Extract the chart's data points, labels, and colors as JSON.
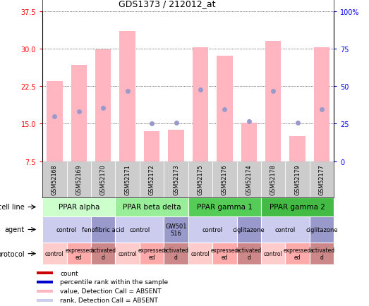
{
  "title": "GDS1373 / 212012_at",
  "samples": [
    "GSM52168",
    "GSM52169",
    "GSM52170",
    "GSM52171",
    "GSM52172",
    "GSM52173",
    "GSM52175",
    "GSM52176",
    "GSM52174",
    "GSM52178",
    "GSM52179",
    "GSM52177"
  ],
  "bar_values": [
    23.5,
    26.8,
    29.8,
    33.5,
    13.5,
    13.8,
    30.2,
    28.5,
    15.2,
    31.5,
    12.5,
    30.2
  ],
  "dot_values": [
    16.5,
    17.5,
    18.2,
    21.5,
    15.0,
    15.2,
    21.8,
    17.8,
    15.5,
    21.5,
    15.2,
    17.8
  ],
  "ymin": 7.5,
  "ymax": 37.5,
  "y2min": 0,
  "y2max": 100,
  "yticks": [
    7.5,
    15.0,
    22.5,
    30.0,
    37.5
  ],
  "y2ticks": [
    0,
    25,
    50,
    75,
    100
  ],
  "bar_color": "#ffb6c1",
  "dot_color": "#9999cc",
  "cell_line_groups": [
    {
      "label": "PPAR alpha",
      "start": 0,
      "end": 2,
      "color": "#ccffcc"
    },
    {
      "label": "PPAR beta delta",
      "start": 3,
      "end": 5,
      "color": "#99ee99"
    },
    {
      "label": "PPAR gamma 1",
      "start": 6,
      "end": 8,
      "color": "#55cc55"
    },
    {
      "label": "PPAR gamma 2",
      "start": 9,
      "end": 11,
      "color": "#44bb44"
    }
  ],
  "agent_groups": [
    {
      "label": "control",
      "start": 0,
      "end": 1,
      "color": "#ccccee"
    },
    {
      "label": "fenofibric acid",
      "start": 2,
      "end": 2,
      "color": "#9999cc"
    },
    {
      "label": "control",
      "start": 3,
      "end": 4,
      "color": "#ccccee"
    },
    {
      "label": "GW501\n516",
      "start": 5,
      "end": 5,
      "color": "#9999cc"
    },
    {
      "label": "control",
      "start": 6,
      "end": 7,
      "color": "#ccccee"
    },
    {
      "label": "ciglitazone",
      "start": 8,
      "end": 8,
      "color": "#9999cc"
    },
    {
      "label": "control",
      "start": 9,
      "end": 10,
      "color": "#ccccee"
    },
    {
      "label": "ciglitazone",
      "start": 11,
      "end": 11,
      "color": "#9999cc"
    }
  ],
  "protocol_groups": [
    {
      "label": "control",
      "start": 0,
      "end": 0,
      "color": "#ffcccc"
    },
    {
      "label": "expressed\ned",
      "start": 1,
      "end": 1,
      "color": "#ffaaaa"
    },
    {
      "label": "activated\nd",
      "start": 2,
      "end": 2,
      "color": "#cc8888"
    },
    {
      "label": "control",
      "start": 3,
      "end": 3,
      "color": "#ffcccc"
    },
    {
      "label": "expressed\ned",
      "start": 4,
      "end": 4,
      "color": "#ffaaaa"
    },
    {
      "label": "activated\nd",
      "start": 5,
      "end": 5,
      "color": "#cc8888"
    },
    {
      "label": "control",
      "start": 6,
      "end": 6,
      "color": "#ffcccc"
    },
    {
      "label": "expressed\ned",
      "start": 7,
      "end": 7,
      "color": "#ffaaaa"
    },
    {
      "label": "activated\nd",
      "start": 8,
      "end": 8,
      "color": "#cc8888"
    },
    {
      "label": "control",
      "start": 9,
      "end": 9,
      "color": "#ffcccc"
    },
    {
      "label": "expressed\ned",
      "start": 10,
      "end": 10,
      "color": "#ffaaaa"
    },
    {
      "label": "activated\nd",
      "start": 11,
      "end": 11,
      "color": "#cc8888"
    }
  ],
  "legend_items": [
    {
      "label": "count",
      "color": "#cc0000"
    },
    {
      "label": "percentile rank within the sample",
      "color": "#0000cc"
    },
    {
      "label": "value, Detection Call = ABSENT",
      "color": "#ffb6c1"
    },
    {
      "label": "rank, Detection Call = ABSENT",
      "color": "#ccccee"
    }
  ],
  "row_labels": [
    "cell line",
    "agent",
    "protocol"
  ],
  "xlabel_bg": "#cccccc",
  "sample_label_fontsize": 6.0,
  "background_color": "#ffffff"
}
